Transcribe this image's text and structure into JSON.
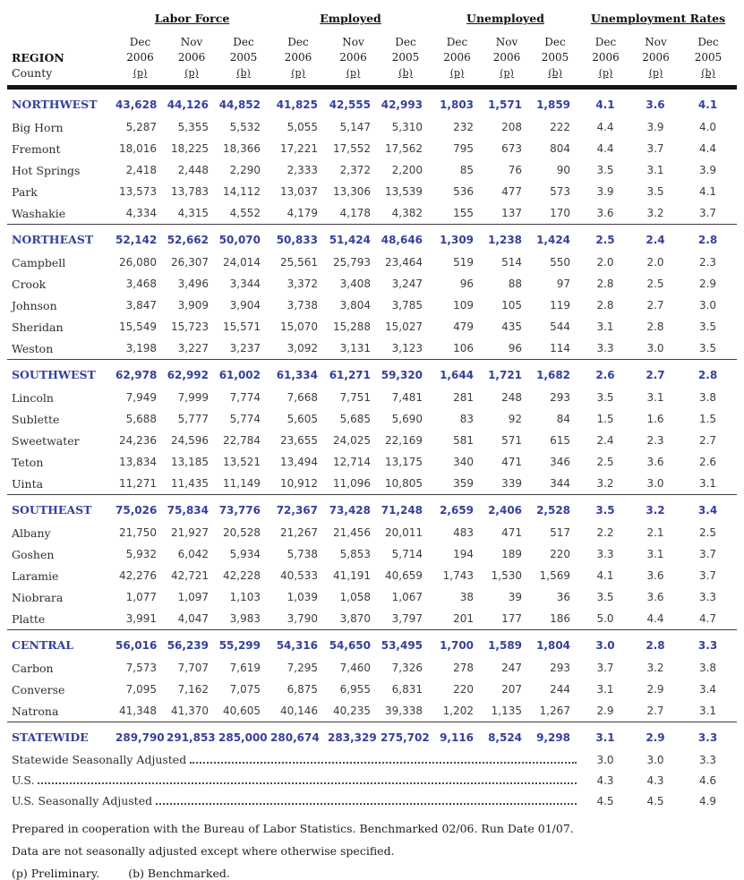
{
  "colors": {
    "region_blue": "#35419b",
    "body_text": "#3a3a3a",
    "rule_black": "#141414"
  },
  "header": {
    "region_label": "REGION",
    "county_label": "County",
    "groups": [
      {
        "label": "Labor Force",
        "columns": [
          {
            "month": "Dec",
            "year": "2006",
            "note": "(p)"
          },
          {
            "month": "Nov",
            "year": "2006",
            "note": "(p)"
          },
          {
            "month": "Dec",
            "year": "2005",
            "note": "(b)"
          }
        ]
      },
      {
        "label": "Employed",
        "columns": [
          {
            "month": "Dec",
            "year": "2006",
            "note": "(p)"
          },
          {
            "month": "Nov",
            "year": "2006",
            "note": "(p)"
          },
          {
            "month": "Dec",
            "year": "2005",
            "note": "(b)"
          }
        ]
      },
      {
        "label": "Unemployed",
        "columns": [
          {
            "month": "Dec",
            "year": "2006",
            "note": "(p)"
          },
          {
            "month": "Nov",
            "year": "2006",
            "note": "(p)"
          },
          {
            "month": "Dec",
            "year": "2005",
            "note": "(b)"
          }
        ]
      },
      {
        "label": "Unemployment Rates",
        "columns": [
          {
            "month": "Dec",
            "year": "2006",
            "note": "(p)"
          },
          {
            "month": "Nov",
            "year": "2006",
            "note": "(p)"
          },
          {
            "month": "Dec",
            "year": "2005",
            "note": "(b)"
          }
        ]
      }
    ]
  },
  "sections": [
    {
      "region": {
        "name": "NORTHWEST",
        "values": [
          "43,628",
          "44,126",
          "44,852",
          "41,825",
          "42,555",
          "42,993",
          "1,803",
          "1,571",
          "1,859",
          "4.1",
          "3.6",
          "4.1"
        ]
      },
      "counties": [
        {
          "name": "Big Horn",
          "values": [
            "5,287",
            "5,355",
            "5,532",
            "5,055",
            "5,147",
            "5,310",
            "232",
            "208",
            "222",
            "4.4",
            "3.9",
            "4.0"
          ]
        },
        {
          "name": "Fremont",
          "values": [
            "18,016",
            "18,225",
            "18,366",
            "17,221",
            "17,552",
            "17,562",
            "795",
            "673",
            "804",
            "4.4",
            "3.7",
            "4.4"
          ]
        },
        {
          "name": "Hot Springs",
          "values": [
            "2,418",
            "2,448",
            "2,290",
            "2,333",
            "2,372",
            "2,200",
            "85",
            "76",
            "90",
            "3.5",
            "3.1",
            "3.9"
          ]
        },
        {
          "name": "Park",
          "values": [
            "13,573",
            "13,783",
            "14,112",
            "13,037",
            "13,306",
            "13,539",
            "536",
            "477",
            "573",
            "3.9",
            "3.5",
            "4.1"
          ]
        },
        {
          "name": "Washakie",
          "values": [
            "4,334",
            "4,315",
            "4,552",
            "4,179",
            "4,178",
            "4,382",
            "155",
            "137",
            "170",
            "3.6",
            "3.2",
            "3.7"
          ]
        }
      ]
    },
    {
      "region": {
        "name": "NORTHEAST",
        "values": [
          "52,142",
          "52,662",
          "50,070",
          "50,833",
          "51,424",
          "48,646",
          "1,309",
          "1,238",
          "1,424",
          "2.5",
          "2.4",
          "2.8"
        ]
      },
      "counties": [
        {
          "name": "Campbell",
          "values": [
            "26,080",
            "26,307",
            "24,014",
            "25,561",
            "25,793",
            "23,464",
            "519",
            "514",
            "550",
            "2.0",
            "2.0",
            "2.3"
          ]
        },
        {
          "name": "Crook",
          "values": [
            "3,468",
            "3,496",
            "3,344",
            "3,372",
            "3,408",
            "3,247",
            "96",
            "88",
            "97",
            "2.8",
            "2.5",
            "2.9"
          ]
        },
        {
          "name": "Johnson",
          "values": [
            "3,847",
            "3,909",
            "3,904",
            "3,738",
            "3,804",
            "3,785",
            "109",
            "105",
            "119",
            "2.8",
            "2.7",
            "3.0"
          ]
        },
        {
          "name": "Sheridan",
          "values": [
            "15,549",
            "15,723",
            "15,571",
            "15,070",
            "15,288",
            "15,027",
            "479",
            "435",
            "544",
            "3.1",
            "2.8",
            "3.5"
          ]
        },
        {
          "name": "Weston",
          "values": [
            "3,198",
            "3,227",
            "3,237",
            "3,092",
            "3,131",
            "3,123",
            "106",
            "96",
            "114",
            "3.3",
            "3.0",
            "3.5"
          ]
        }
      ]
    },
    {
      "region": {
        "name": "SOUTHWEST",
        "values": [
          "62,978",
          "62,992",
          "61,002",
          "61,334",
          "61,271",
          "59,320",
          "1,644",
          "1,721",
          "1,682",
          "2.6",
          "2.7",
          "2.8"
        ]
      },
      "counties": [
        {
          "name": "Lincoln",
          "values": [
            "7,949",
            "7,999",
            "7,774",
            "7,668",
            "7,751",
            "7,481",
            "281",
            "248",
            "293",
            "3.5",
            "3.1",
            "3.8"
          ]
        },
        {
          "name": "Sublette",
          "values": [
            "5,688",
            "5,777",
            "5,774",
            "5,605",
            "5,685",
            "5,690",
            "83",
            "92",
            "84",
            "1.5",
            "1.6",
            "1.5"
          ]
        },
        {
          "name": "Sweetwater",
          "values": [
            "24,236",
            "24,596",
            "22,784",
            "23,655",
            "24,025",
            "22,169",
            "581",
            "571",
            "615",
            "2.4",
            "2.3",
            "2.7"
          ]
        },
        {
          "name": "Teton",
          "values": [
            "13,834",
            "13,185",
            "13,521",
            "13,494",
            "12,714",
            "13,175",
            "340",
            "471",
            "346",
            "2.5",
            "3.6",
            "2.6"
          ]
        },
        {
          "name": "Uinta",
          "values": [
            "11,271",
            "11,435",
            "11,149",
            "10,912",
            "11,096",
            "10,805",
            "359",
            "339",
            "344",
            "3.2",
            "3.0",
            "3.1"
          ]
        }
      ]
    },
    {
      "region": {
        "name": "SOUTHEAST",
        "values": [
          "75,026",
          "75,834",
          "73,776",
          "72,367",
          "73,428",
          "71,248",
          "2,659",
          "2,406",
          "2,528",
          "3.5",
          "3.2",
          "3.4"
        ]
      },
      "counties": [
        {
          "name": "Albany",
          "values": [
            "21,750",
            "21,927",
            "20,528",
            "21,267",
            "21,456",
            "20,011",
            "483",
            "471",
            "517",
            "2.2",
            "2.1",
            "2.5"
          ]
        },
        {
          "name": "Goshen",
          "values": [
            "5,932",
            "6,042",
            "5,934",
            "5,738",
            "5,853",
            "5,714",
            "194",
            "189",
            "220",
            "3.3",
            "3.1",
            "3.7"
          ]
        },
        {
          "name": "Laramie",
          "values": [
            "42,276",
            "42,721",
            "42,228",
            "40,533",
            "41,191",
            "40,659",
            "1,743",
            "1,530",
            "1,569",
            "4.1",
            "3.6",
            "3.7"
          ]
        },
        {
          "name": "Niobrara",
          "values": [
            "1,077",
            "1,097",
            "1,103",
            "1,039",
            "1,058",
            "1,067",
            "38",
            "39",
            "36",
            "3.5",
            "3.6",
            "3.3"
          ]
        },
        {
          "name": "Platte",
          "values": [
            "3,991",
            "4,047",
            "3,983",
            "3,790",
            "3,870",
            "3,797",
            "201",
            "177",
            "186",
            "5.0",
            "4.4",
            "4.7"
          ]
        }
      ]
    },
    {
      "region": {
        "name": "CENTRAL",
        "values": [
          "56,016",
          "56,239",
          "55,299",
          "54,316",
          "54,650",
          "53,495",
          "1,700",
          "1,589",
          "1,804",
          "3.0",
          "2.8",
          "3.3"
        ]
      },
      "counties": [
        {
          "name": "Carbon",
          "values": [
            "7,573",
            "7,707",
            "7,619",
            "7,295",
            "7,460",
            "7,326",
            "278",
            "247",
            "293",
            "3.7",
            "3.2",
            "3.8"
          ]
        },
        {
          "name": "Converse",
          "values": [
            "7,095",
            "7,162",
            "7,075",
            "6,875",
            "6,955",
            "6,831",
            "220",
            "207",
            "244",
            "3.1",
            "2.9",
            "3.4"
          ]
        },
        {
          "name": "Natrona",
          "values": [
            "41,348",
            "41,370",
            "40,605",
            "40,146",
            "40,235",
            "39,338",
            "1,202",
            "1,135",
            "1,267",
            "2.9",
            "2.7",
            "3.1"
          ]
        }
      ]
    },
    {
      "region": {
        "name": "STATEWIDE",
        "values": [
          "289,790",
          "291,853",
          "285,000",
          "280,674",
          "283,329",
          "275,702",
          "9,116",
          "8,524",
          "9,298",
          "3.1",
          "2.9",
          "3.3"
        ]
      },
      "counties": []
    }
  ],
  "adjusted_rows": [
    {
      "label": "Statewide Seasonally Adjusted",
      "rates": [
        "3.0",
        "3.0",
        "3.3"
      ]
    },
    {
      "label": "U.S.",
      "rates": [
        "4.3",
        "4.3",
        "4.6"
      ]
    },
    {
      "label": "U.S. Seasonally Adjusted",
      "rates": [
        "4.5",
        "4.5",
        "4.9"
      ]
    }
  ],
  "footer": {
    "line1": "Prepared in cooperation with the Bureau of Labor Statistics.  Benchmarked 02/06.  Run Date 01/07.",
    "line2": "Data are not seasonally adjusted except where otherwise specified.",
    "prelim_note": "(p) Preliminary.",
    "bench_note": "(b) Benchmarked."
  }
}
